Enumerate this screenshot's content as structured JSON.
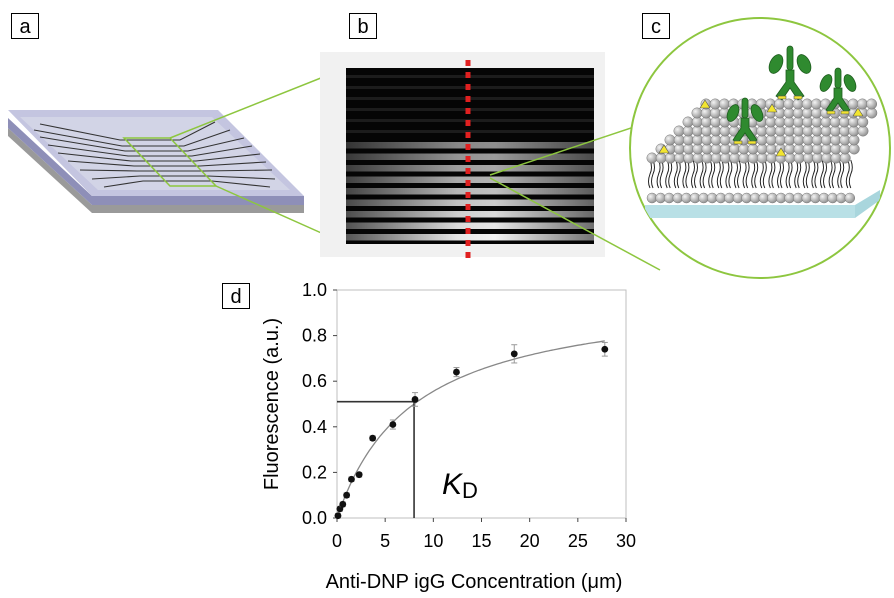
{
  "panels": {
    "a": {
      "label": "a"
    },
    "b": {
      "label": "b"
    },
    "c": {
      "label": "c"
    },
    "d": {
      "label": "d"
    }
  },
  "colors": {
    "callout_line": "#8dc63f",
    "substrate_top": "#b8b9d8",
    "substrate_side": "#8e8fb8",
    "base_plate": "#9a9a9a",
    "channel": "#333333",
    "dashed_line": "#e02020",
    "lipid_head": "#b5b5b5",
    "support": "#a9d6dd",
    "antibody": "#2f8a2f",
    "hapten": "#f2e530",
    "fit_curve": "#888888"
  },
  "icons": {
    "microfluidic_chip": "chip-illustration",
    "lipid_bilayer": "bilayer-illustration",
    "antibody": "antibody-icon",
    "hapten": "triangle-hapten-icon"
  },
  "fluorescence_image": {
    "bright_stripes": 9
  },
  "chart_data": {
    "type": "scatter",
    "xlabel": "Anti-DNP igG Concentration (μm)",
    "ylabel": "Fluorescence (a.u.)",
    "xlim": [
      0,
      30
    ],
    "ylim": [
      0,
      1.0
    ],
    "xticks": [
      "0",
      "5",
      "10",
      "15",
      "20",
      "25",
      "30"
    ],
    "yticks": [
      "0.0",
      "0.2",
      "0.4",
      "0.6",
      "0.8",
      "1.0"
    ],
    "grid": false,
    "x": [
      0.1,
      0.3,
      0.6,
      1.0,
      1.5,
      2.3,
      3.7,
      5.8,
      8.1,
      12.4,
      18.4,
      27.8
    ],
    "y": [
      0.01,
      0.04,
      0.06,
      0.1,
      0.17,
      0.19,
      0.35,
      0.41,
      0.52,
      0.64,
      0.72,
      0.74
    ],
    "yerr": [
      0.01,
      0.01,
      0.01,
      0.01,
      0.01,
      0.01,
      0.01,
      0.02,
      0.03,
      0.02,
      0.04,
      0.03
    ],
    "fit": {
      "bmax": 1.0,
      "kd": 8.0
    },
    "annotation": {
      "text": "K",
      "subscript": "D",
      "kd_x": 8.0,
      "kd_y": 0.51
    }
  }
}
